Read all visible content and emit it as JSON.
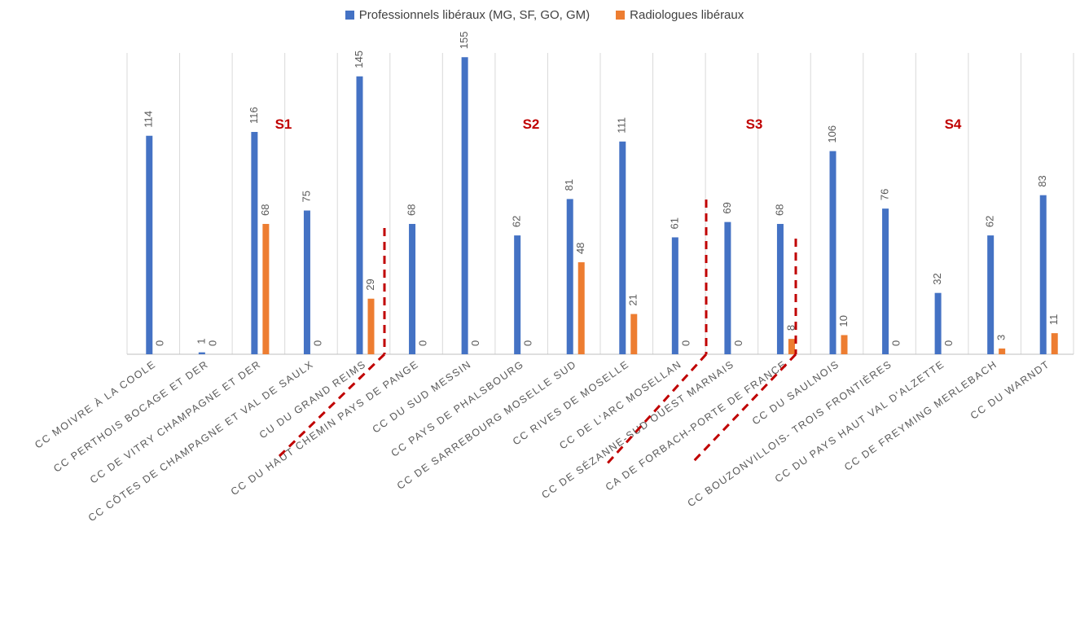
{
  "chart_data": {
    "type": "bar",
    "categories": [
      "CC MOIVRE À LA COOLE",
      "CC PERTHOIS BOCAGE ET DER",
      "CC DE VITRY CHAMPAGNE ET DER",
      "CC CÔTES DE CHAMPAGNE ET VAL DE SAULX",
      "CU DU GRAND REIMS",
      "CC DU HAUT CHEMIN PAYS DE PANGE",
      "CC DU SUD MESSIN",
      "CC PAYS DE PHALSBOURG",
      "CC DE SARREBOURG MOSELLE SUD",
      "CC RIVES DE MOSELLE",
      "CC DE L'ARC MOSELLAN",
      "CC DE SÉZANNE-SUD OUEST MARNAIS",
      "CA DE FORBACH-PORTE DE FRANCE",
      "CC DU SAULNOIS",
      "CC BOUZONVILLOIS- TROIS FRONTIÈRES",
      "CC DU PAYS HAUT VAL D'ALZETTE",
      "CC DE FREYMING MERLEBACH",
      "CC DU WARNDT"
    ],
    "series": [
      {
        "name": "Professionnels libéraux (MG, SF, GO, GM)",
        "color": "#4472C4",
        "values": [
          114,
          1,
          116,
          75,
          145,
          68,
          155,
          62,
          81,
          111,
          61,
          69,
          68,
          106,
          76,
          32,
          62,
          83
        ]
      },
      {
        "name": "Radiologues libéraux",
        "color": "#ED7D31",
        "values": [
          0,
          0,
          68,
          0,
          29,
          0,
          0,
          0,
          48,
          21,
          0,
          0,
          8,
          10,
          0,
          0,
          3,
          11
        ]
      }
    ],
    "sector_labels": [
      "S1",
      "S2",
      "S3",
      "S4"
    ],
    "sector_label_color": "#C00000",
    "sector_divider_color": "#C00000",
    "gridlines": "vertical category dividers",
    "legend_position": "top",
    "ylim": [
      0,
      160
    ],
    "title": "",
    "xlabel": "",
    "ylabel": ""
  }
}
